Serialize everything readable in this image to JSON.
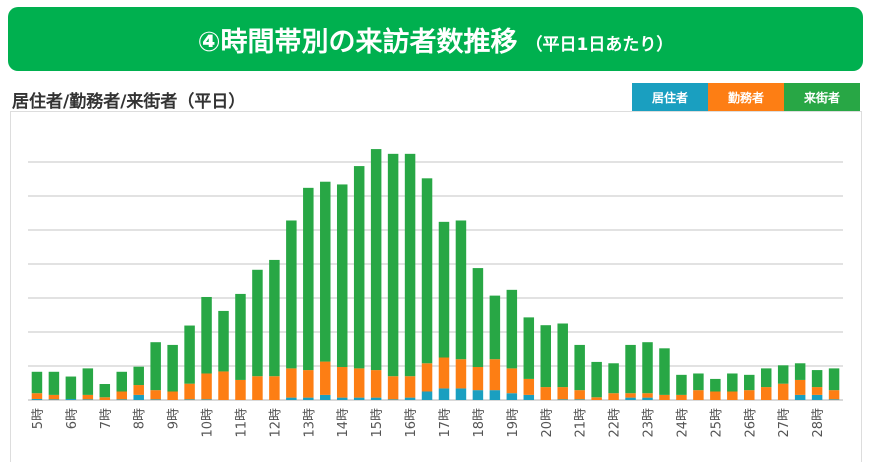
{
  "banner": {
    "title": "④時間帯別の来訪者数推移",
    "subtitle": "（平日1日あたり）"
  },
  "chart_data": {
    "type": "bar",
    "stacked": true,
    "title": "居住者/勤務者/来街者（平日）",
    "grid": true,
    "legend_placement": "top-right",
    "ylim": [
      0,
      75
    ],
    "y_axis_labels_shown": false,
    "categories": [
      "5時",
      "",
      "6時",
      "",
      "7時",
      "",
      "8時",
      "",
      "9時",
      "",
      "10時",
      "",
      "11時",
      "",
      "12時",
      "",
      "13時",
      "",
      "14時",
      "",
      "15時",
      "",
      "16時",
      "",
      "17時",
      "",
      "18時",
      "",
      "19時",
      "",
      "20時",
      "",
      "21時",
      "",
      "22時",
      "",
      "23時",
      "",
      "24時",
      "",
      "25時",
      "",
      "26時",
      "",
      "27時",
      "",
      "28時",
      ""
    ],
    "series": [
      {
        "name": "居住者",
        "color": "#1a9fc0",
        "values": [
          0.3,
          0.2,
          0.3,
          0.2,
          0,
          0.2,
          1.5,
          0.2,
          0,
          0.2,
          0.2,
          0,
          0,
          0,
          0,
          0.7,
          0.7,
          1.5,
          0.7,
          0.7,
          0.7,
          0.2,
          0.7,
          2.5,
          3.4,
          3.4,
          2.9,
          2.9,
          2.0,
          1.5,
          0,
          0.2,
          0.2,
          0,
          0,
          0.7,
          0.7,
          0,
          0,
          0,
          0,
          0,
          0,
          0,
          0,
          1.5,
          1.5,
          0.2
        ]
      },
      {
        "name": "勤務者",
        "color": "#fd7e14",
        "values": [
          1.7,
          1.3,
          0,
          1.3,
          0.8,
          2.3,
          2.9,
          2.7,
          2.5,
          4.6,
          7.6,
          8.4,
          5.9,
          7.0,
          7.0,
          8.6,
          8.1,
          9.8,
          9.0,
          8.6,
          8.1,
          6.8,
          6.3,
          8.3,
          9.1,
          8.6,
          6.8,
          9.1,
          7.3,
          4.7,
          3.8,
          3.6,
          2.7,
          0.8,
          2.0,
          1.3,
          1.3,
          1.5,
          1.5,
          2.9,
          2.5,
          2.5,
          2.9,
          3.8,
          4.8,
          4.4,
          2.3,
          2.7
        ]
      },
      {
        "name": "来街者",
        "color": "#28a745",
        "values": [
          6.3,
          6.8,
          6.6,
          7.8,
          3.9,
          5.8,
          5.4,
          14.1,
          13.7,
          17.1,
          22.5,
          17.8,
          25.3,
          31.3,
          34.2,
          43.5,
          53.6,
          52.9,
          53.7,
          59.5,
          65.0,
          65.4,
          65.4,
          54.4,
          39.9,
          40.8,
          29.1,
          18.7,
          23.1,
          18.1,
          18.2,
          18.7,
          13.3,
          10.4,
          8.8,
          14.2,
          15.0,
          13.7,
          5.9,
          4.9,
          3.7,
          5.3,
          4.5,
          5.5,
          5.4,
          4.9,
          5.0,
          6.4
        ]
      }
    ]
  }
}
